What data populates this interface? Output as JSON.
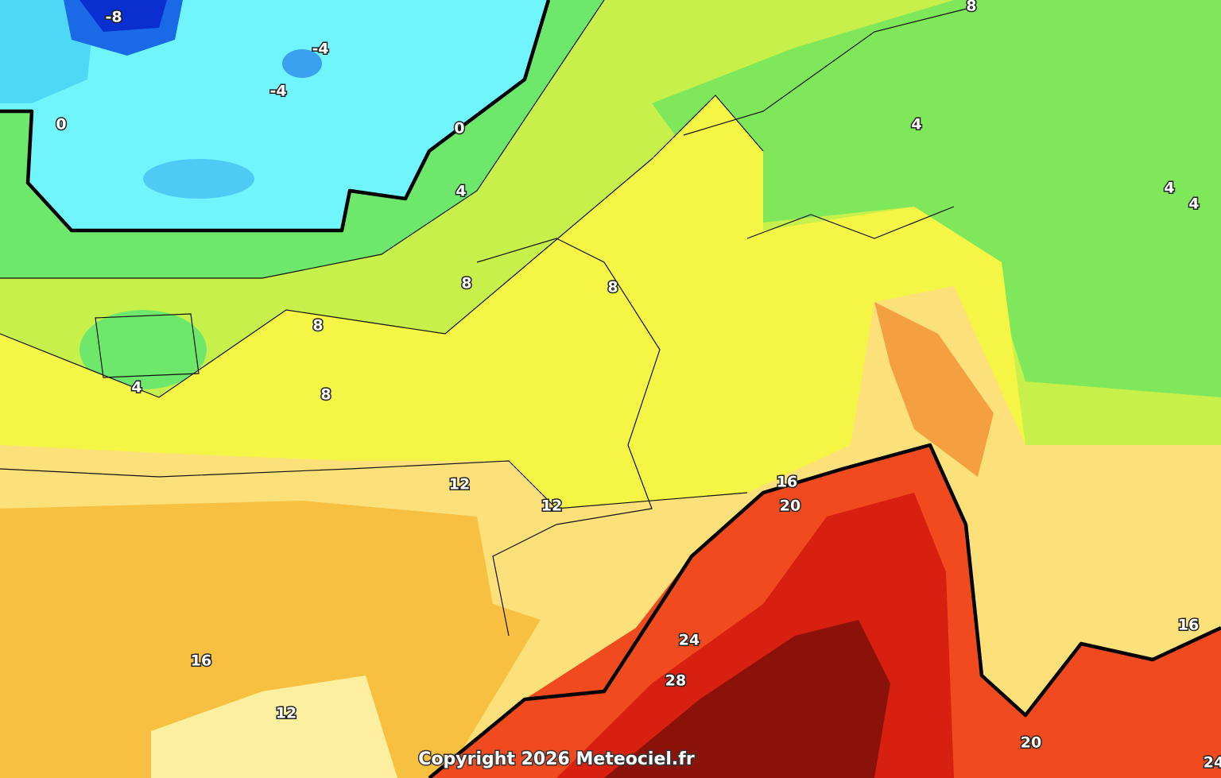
{
  "map": {
    "contour_labels": [
      -8,
      -4,
      -4,
      0,
      0,
      4,
      8,
      4,
      4,
      4,
      8,
      8,
      8,
      4,
      8,
      12,
      12,
      16,
      20,
      24,
      28,
      16,
      12,
      16,
      20,
      24
    ],
    "copyright": "Copyright 2026 Meteociel.fr"
  }
}
